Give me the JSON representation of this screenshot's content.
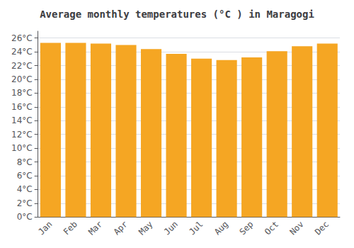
{
  "chart_data": {
    "type": "bar",
    "title": "Average monthly temperatures (°C ) in Maragogi",
    "categories": [
      "Jan",
      "Feb",
      "Mar",
      "Apr",
      "May",
      "Jun",
      "Jul",
      "Aug",
      "Sep",
      "Oct",
      "Nov",
      "Dec"
    ],
    "values": [
      25.3,
      25.3,
      25.2,
      25.0,
      24.4,
      23.7,
      23.0,
      22.8,
      23.2,
      24.1,
      24.8,
      25.2
    ],
    "color": "#F5A623",
    "ylim": [
      0,
      27
    ],
    "yticks": [
      {
        "value": 0,
        "label": "0°C"
      },
      {
        "value": 2,
        "label": "2°C"
      },
      {
        "value": 4,
        "label": "4°C"
      },
      {
        "value": 6,
        "label": "6°C"
      },
      {
        "value": 8,
        "label": "8°C"
      },
      {
        "value": 10,
        "label": "10°C"
      },
      {
        "value": 12,
        "label": "12°C"
      },
      {
        "value": 14,
        "label": "14°C"
      },
      {
        "value": 16,
        "label": "16°C"
      },
      {
        "value": 18,
        "label": "18°C"
      },
      {
        "value": 20,
        "label": "20°C"
      },
      {
        "value": 22,
        "label": "22°C"
      },
      {
        "value": 24,
        "label": "24°C"
      },
      {
        "value": 26,
        "label": "26°C"
      }
    ],
    "grid": true
  }
}
